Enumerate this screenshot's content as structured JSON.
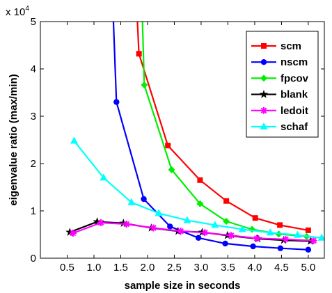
{
  "chart_data": {
    "type": "line",
    "xlabel": "sample size in seconds",
    "ylabel": "eigenvalue ratio (max/min)",
    "xlim": [
      0,
      5.3
    ],
    "ylim": [
      0,
      50000
    ],
    "xticks": [
      0.5,
      1.0,
      1.5,
      2.0,
      2.5,
      3.0,
      3.5,
      4.0,
      4.5,
      5.0
    ],
    "xtick_labels": [
      "0.5",
      "1.0",
      "1.5",
      "2.0",
      "2.5",
      "3.0",
      "3.5",
      "4.0",
      "4.5",
      "5.0"
    ],
    "yticks": [
      0,
      10000,
      20000,
      30000,
      40000,
      50000
    ],
    "ytick_labels": [
      "0",
      "1",
      "2",
      "3",
      "4",
      "5"
    ],
    "y_multiplier": "x 10",
    "y_multiplier_exp": "4",
    "grid": false,
    "legend_position": "top-right",
    "series": [
      {
        "name": "scm",
        "color": "#ff0000",
        "marker": "square",
        "points": [
          [
            1.77,
            60000
          ],
          [
            1.84,
            43200
          ],
          [
            2.38,
            23800
          ],
          [
            2.98,
            16500
          ],
          [
            3.47,
            12100
          ],
          [
            4.01,
            8500
          ],
          [
            4.47,
            7000
          ],
          [
            5.0,
            5900
          ]
        ]
      },
      {
        "name": "nscm",
        "color": "#0000ff",
        "marker": "circle",
        "points": [
          [
            1.33,
            60000
          ],
          [
            1.42,
            33000
          ],
          [
            1.93,
            12500
          ],
          [
            2.42,
            6700
          ],
          [
            2.95,
            4300
          ],
          [
            3.45,
            3100
          ],
          [
            3.97,
            2500
          ],
          [
            4.48,
            2100
          ],
          [
            5.0,
            1800
          ]
        ]
      },
      {
        "name": "fpcov",
        "color": "#00ee00",
        "marker": "diamond",
        "points": [
          [
            1.88,
            60000
          ],
          [
            1.94,
            36600
          ],
          [
            2.45,
            18700
          ],
          [
            2.98,
            11500
          ],
          [
            3.47,
            7800
          ],
          [
            3.95,
            6100
          ],
          [
            4.45,
            5100
          ],
          [
            4.97,
            4600
          ]
        ]
      },
      {
        "name": "blank",
        "color": "#000000",
        "marker": "star",
        "points": [
          [
            0.55,
            5500
          ],
          [
            1.06,
            7700
          ],
          [
            1.55,
            7400
          ],
          [
            2.07,
            6400
          ],
          [
            2.57,
            5700
          ],
          [
            3.02,
            5500
          ],
          [
            3.49,
            4800
          ],
          [
            4.06,
            4100
          ],
          [
            4.54,
            3800
          ],
          [
            5.04,
            3600
          ]
        ]
      },
      {
        "name": "ledoit",
        "color": "#ff00ff",
        "marker": "asterisk",
        "points": [
          [
            0.61,
            5300
          ],
          [
            1.13,
            7500
          ],
          [
            1.61,
            7200
          ],
          [
            2.11,
            6400
          ],
          [
            2.62,
            5700
          ],
          [
            3.07,
            5400
          ],
          [
            3.56,
            4800
          ],
          [
            4.04,
            4200
          ],
          [
            4.58,
            4000
          ],
          [
            5.1,
            3700
          ]
        ]
      },
      {
        "name": "schaf",
        "color": "#00ffff",
        "marker": "triangle",
        "points": [
          [
            0.63,
            24800
          ],
          [
            1.18,
            17000
          ],
          [
            1.7,
            11800
          ],
          [
            2.21,
            9500
          ],
          [
            2.74,
            8000
          ],
          [
            3.26,
            7000
          ],
          [
            3.77,
            6100
          ],
          [
            4.29,
            5400
          ],
          [
            4.8,
            4900
          ],
          [
            5.25,
            4300
          ]
        ]
      }
    ]
  }
}
